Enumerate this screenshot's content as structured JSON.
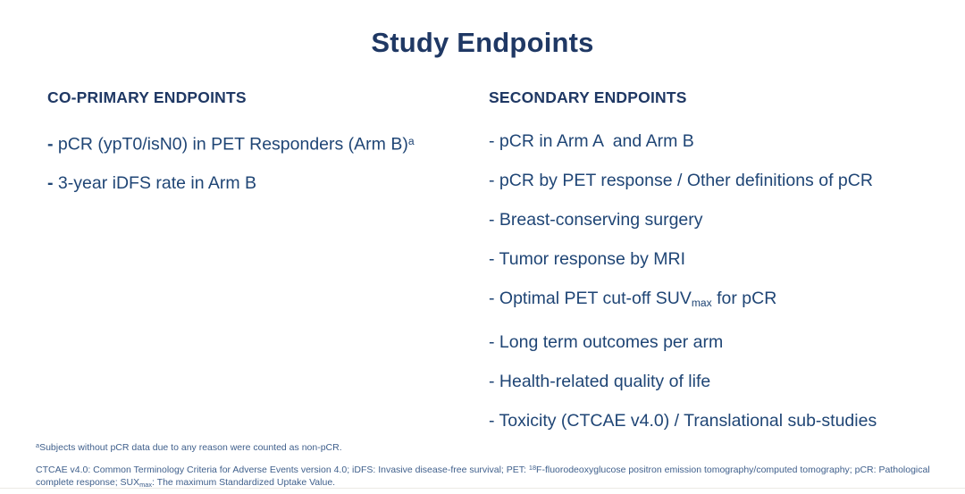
{
  "slide": {
    "title": "Study Endpoints"
  },
  "columns": {
    "primary": {
      "heading": "CO-PRIMARY ENDPOINTS",
      "items": [
        {
          "parts": [
            {
              "t": "- ",
              "b": true
            },
            {
              "t": "pCR (ypT0/isN0) in PET Responders (Arm B)"
            },
            {
              "t": "a",
              "s": "sup"
            }
          ]
        },
        {
          "parts": [
            {
              "t": "- ",
              "b": true
            },
            {
              "t": "3-year iDFS rate in Arm B"
            }
          ]
        }
      ]
    },
    "secondary": {
      "heading": "SECONDARY ENDPOINTS",
      "items": [
        {
          "parts": [
            {
              "t": "- pCR in Arm A  and Arm B"
            }
          ]
        },
        {
          "parts": [
            {
              "t": "- pCR by PET response / Other definitions of pCR"
            }
          ]
        },
        {
          "parts": [
            {
              "t": "- Breast-conserving surgery"
            }
          ]
        },
        {
          "parts": [
            {
              "t": "- Tumor response by MRI"
            }
          ]
        },
        {
          "parts": [
            {
              "t": "- Optimal PET cut-off SUV"
            },
            {
              "t": "max",
              "s": "sub"
            },
            {
              "t": " for pCR"
            }
          ]
        },
        {
          "parts": [
            {
              "t": "- Long term outcomes per arm"
            }
          ]
        },
        {
          "parts": [
            {
              "t": "- Health-related quality of life"
            }
          ]
        },
        {
          "parts": [
            {
              "t": "- Toxicity (CTCAE v4.0) / Translational sub-studies"
            }
          ]
        }
      ]
    }
  },
  "footnotes": {
    "note_a": [
      {
        "t": "a",
        "s": "sup"
      },
      {
        "t": "Subjects without pCR data due to any reason were counted as non-pCR."
      }
    ],
    "abbreviations": [
      {
        "t": "CTCAE v4.0: Common Terminology Criteria for Adverse Events version 4.0; iDFS: Invasive disease-free survival; PET: "
      },
      {
        "t": "18",
        "s": "sup"
      },
      {
        "t": "F-fluorodeoxyglucose positron emission tomography/computed tomography; pCR: Pathological complete response; SUX"
      },
      {
        "t": "max",
        "s": "sub"
      },
      {
        "t": ": The maximum Standardized Uptake Value."
      }
    ]
  },
  "colors": {
    "title": "#1f3864",
    "heading": "#1f3864",
    "item": "#1f4575",
    "footnote": "#40608c"
  }
}
